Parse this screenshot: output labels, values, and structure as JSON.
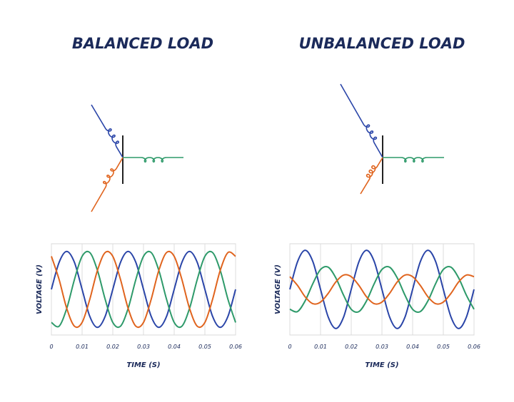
{
  "chart_data": [
    {
      "type": "line",
      "title": "BALANCED LOAD",
      "x_label": "TIME (S)",
      "y_label": "VOLTAGE (V)",
      "x": [
        0,
        0.0025,
        0.005,
        0.0075,
        0.01,
        0.0125,
        0.015,
        0.0175,
        0.02,
        0.0225,
        0.025,
        0.0275,
        0.03,
        0.0325,
        0.035,
        0.0375,
        0.04,
        0.0425,
        0.045,
        0.0475,
        0.05,
        0.0525,
        0.055,
        0.0575,
        0.06
      ],
      "xlim": [
        0,
        0.06
      ],
      "xticks": [
        0,
        0.01,
        0.02,
        0.03,
        0.04,
        0.05,
        0.06
      ],
      "ylim": [
        -1.2,
        1.2
      ],
      "grid": true,
      "series": [
        {
          "color": "#2a45a8",
          "values": [
            0,
            0.71,
            1,
            0.71,
            0,
            -0.71,
            -1,
            -0.71,
            0,
            0.71,
            1,
            0.71,
            0,
            -0.71,
            -1,
            -0.71,
            0,
            0.71,
            1,
            0.71,
            0,
            -0.71,
            -1,
            -0.71,
            0
          ]
        },
        {
          "color": "#2e9a6a",
          "values": [
            -0.87,
            -0.97,
            -0.5,
            0.26,
            0.87,
            0.97,
            0.5,
            -0.26,
            -0.87,
            -0.97,
            -0.5,
            0.26,
            0.87,
            0.97,
            0.5,
            -0.26,
            -0.87,
            -0.97,
            -0.5,
            0.26,
            0.87,
            0.97,
            0.5,
            -0.26,
            -0.87
          ]
        },
        {
          "color": "#e0641e",
          "values": [
            0.87,
            0.26,
            -0.5,
            -0.97,
            -0.87,
            -0.26,
            0.5,
            0.97,
            0.87,
            0.26,
            -0.5,
            -0.97,
            -0.87,
            -0.26,
            0.5,
            0.97,
            0.87,
            0.26,
            -0.5,
            -0.97,
            -0.87,
            -0.26,
            0.5,
            0.97,
            0.87
          ]
        }
      ]
    },
    {
      "type": "line",
      "title": "UNBALANCED LOAD",
      "x_label": "TIME (S)",
      "y_label": "VOLTAGE (V)",
      "x": [
        0,
        0.0025,
        0.005,
        0.0075,
        0.01,
        0.0125,
        0.015,
        0.0175,
        0.02,
        0.0225,
        0.025,
        0.0275,
        0.03,
        0.0325,
        0.035,
        0.0375,
        0.04,
        0.0425,
        0.045,
        0.0475,
        0.05,
        0.0525,
        0.055,
        0.0575,
        0.06
      ],
      "xlim": [
        0,
        0.06
      ],
      "xticks": [
        0,
        0.01,
        0.02,
        0.03,
        0.04,
        0.05,
        0.06
      ],
      "ylim": [
        -1.4,
        1.4
      ],
      "grid": true,
      "series": [
        {
          "color": "#2a45a8",
          "values": [
            0,
            0.85,
            1.2,
            0.85,
            0,
            -0.85,
            -1.2,
            -0.85,
            0,
            0.85,
            1.2,
            0.85,
            0,
            -0.85,
            -1.2,
            -0.85,
            0,
            0.85,
            1.2,
            0.85,
            0,
            -0.85,
            -1.2,
            -0.85,
            0
          ]
        },
        {
          "color": "#2e9a6a",
          "values": [
            -0.61,
            -0.68,
            -0.35,
            0.18,
            0.61,
            0.68,
            0.35,
            -0.18,
            -0.61,
            -0.68,
            -0.35,
            0.18,
            0.61,
            0.68,
            0.35,
            -0.18,
            -0.61,
            -0.68,
            -0.35,
            0.18,
            0.61,
            0.68,
            0.35,
            -0.18,
            -0.61
          ]
        },
        {
          "color": "#e0641e",
          "values": [
            0.39,
            0.12,
            -0.23,
            -0.44,
            -0.39,
            -0.12,
            0.23,
            0.44,
            0.39,
            0.12,
            -0.23,
            -0.44,
            -0.39,
            -0.12,
            0.23,
            0.44,
            0.39,
            0.12,
            -0.23,
            -0.44,
            -0.39,
            -0.12,
            0.23,
            0.44,
            0.39
          ]
        }
      ]
    }
  ]
}
